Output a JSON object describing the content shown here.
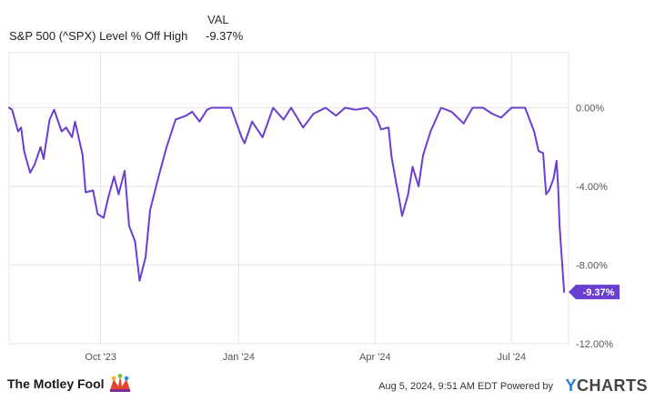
{
  "legend": {
    "header": "VAL",
    "series_name": "S&P 500 (^SPX) Level % Off High",
    "series_value": "-9.37%"
  },
  "footer": {
    "brand": "The Motley Fool",
    "timestamp": "Aug 5, 2024, 9:51 AM EDT",
    "powered_by": "Powered by",
    "ycharts_y": "Y",
    "ycharts_rest": "CHARTS"
  },
  "colors": {
    "line": "#6a3fd0",
    "grid": "#e6e6e6",
    "axis_text": "#555555"
  },
  "chart_data": {
    "type": "line",
    "title": "",
    "xlabel": "",
    "ylabel": "",
    "ylim": [
      -12,
      0
    ],
    "y_ticks": [
      0,
      -4,
      -8,
      -12
    ],
    "y_tick_labels": [
      "0.00%",
      "-4.00%",
      "-8.00%",
      "-12.00%"
    ],
    "x_ticks": [
      "2023-10-01",
      "2024-01-01",
      "2024-04-01",
      "2024-07-01"
    ],
    "x_tick_labels": [
      "Oct '23",
      "Jan '24",
      "Apr '24",
      "Jul '24"
    ],
    "current_label": "-9.37%",
    "series": [
      {
        "name": "S&P 500 (^SPX) Level % Off High",
        "x": [
          "2023-08-01",
          "2023-08-03",
          "2023-08-07",
          "2023-08-09",
          "2023-08-11",
          "2023-08-15",
          "2023-08-18",
          "2023-08-22",
          "2023-08-24",
          "2023-08-28",
          "2023-08-31",
          "2023-09-05",
          "2023-09-08",
          "2023-09-12",
          "2023-09-14",
          "2023-09-19",
          "2023-09-21",
          "2023-09-26",
          "2023-09-29",
          "2023-10-03",
          "2023-10-06",
          "2023-10-10",
          "2023-10-13",
          "2023-10-17",
          "2023-10-20",
          "2023-10-24",
          "2023-10-27",
          "2023-10-31",
          "2023-11-03",
          "2023-11-08",
          "2023-11-14",
          "2023-11-20",
          "2023-11-27",
          "2023-12-01",
          "2023-12-06",
          "2023-12-11",
          "2023-12-14",
          "2023-12-20",
          "2023-12-27",
          "2024-01-03",
          "2024-01-05",
          "2024-01-10",
          "2024-01-17",
          "2024-01-24",
          "2024-01-31",
          "2024-02-05",
          "2024-02-13",
          "2024-02-20",
          "2024-02-28",
          "2024-03-06",
          "2024-03-12",
          "2024-03-19",
          "2024-03-27",
          "2024-04-02",
          "2024-04-05",
          "2024-04-10",
          "2024-04-12",
          "2024-04-15",
          "2024-04-17",
          "2024-04-19",
          "2024-04-23",
          "2024-04-26",
          "2024-04-30",
          "2024-05-03",
          "2024-05-08",
          "2024-05-15",
          "2024-05-22",
          "2024-05-30",
          "2024-06-05",
          "2024-06-12",
          "2024-06-18",
          "2024-06-24",
          "2024-07-01",
          "2024-07-05",
          "2024-07-10",
          "2024-07-16",
          "2024-07-19",
          "2024-07-22",
          "2024-07-24",
          "2024-07-26",
          "2024-07-29",
          "2024-07-31",
          "2024-08-01",
          "2024-08-02",
          "2024-08-05"
        ],
        "values": [
          0.0,
          -0.1,
          -1.2,
          -1.0,
          -2.2,
          -3.3,
          -2.9,
          -2.0,
          -2.6,
          -0.6,
          -0.1,
          -1.2,
          -1.0,
          -1.5,
          -0.7,
          -2.4,
          -4.3,
          -4.2,
          -5.4,
          -5.6,
          -4.6,
          -3.5,
          -4.4,
          -3.2,
          -6.0,
          -6.8,
          -8.8,
          -7.6,
          -5.2,
          -3.7,
          -2.0,
          -0.6,
          -0.4,
          -0.2,
          -0.7,
          -0.1,
          0.0,
          0.0,
          0.0,
          -1.5,
          -1.8,
          -0.7,
          -1.5,
          0.0,
          -0.6,
          0.0,
          -1.0,
          -0.3,
          0.0,
          -0.4,
          0.0,
          -0.1,
          0.0,
          -0.5,
          -1.1,
          -1.0,
          -2.5,
          -3.8,
          -4.6,
          -5.5,
          -4.4,
          -3.0,
          -4.0,
          -2.4,
          -1.2,
          0.0,
          -0.2,
          -0.8,
          0.0,
          0.0,
          -0.3,
          -0.5,
          0.0,
          0.0,
          0.0,
          -1.2,
          -2.2,
          -2.3,
          -4.4,
          -4.2,
          -3.6,
          -2.7,
          -4.0,
          -6.0,
          -9.37
        ]
      }
    ]
  }
}
